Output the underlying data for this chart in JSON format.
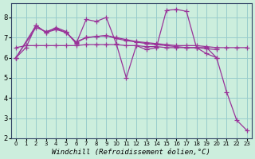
{
  "background_color": "#cceedd",
  "grid_color": "#99cccc",
  "line_color": "#993399",
  "marker": "+",
  "markersize": 4,
  "linewidth": 0.9,
  "xlabel": "Windchill (Refroidissement éolien,°C)",
  "xlabel_fontsize": 6.5,
  "xlim": [
    -0.5,
    23.5
  ],
  "ylim": [
    2,
    8.7
  ],
  "yticks": [
    2,
    3,
    4,
    5,
    6,
    7,
    8
  ],
  "xticks": [
    0,
    1,
    2,
    3,
    4,
    5,
    6,
    7,
    8,
    9,
    10,
    11,
    12,
    13,
    14,
    15,
    16,
    17,
    18,
    19,
    20,
    21,
    22,
    23
  ],
  "series": {
    "s1": {
      "x": [
        0,
        1,
        2,
        3,
        4,
        5,
        6,
        7,
        8,
        9,
        10,
        11,
        12,
        13,
        14,
        15,
        16,
        17,
        18,
        19,
        20,
        21,
        22,
        23
      ],
      "y": [
        6.0,
        6.5,
        7.6,
        7.25,
        7.5,
        7.3,
        6.7,
        7.9,
        7.8,
        8.0,
        6.7,
        5.0,
        6.6,
        6.4,
        6.5,
        8.35,
        8.4,
        8.3,
        6.5,
        6.5,
        6.0,
        4.3,
        2.9,
        2.4
      ]
    },
    "s2": {
      "x": [
        0,
        1,
        2,
        3,
        4,
        5,
        6,
        7,
        8,
        9,
        10,
        11,
        12,
        13,
        14,
        15,
        16,
        17,
        18,
        19,
        20
      ],
      "y": [
        6.5,
        6.6,
        6.6,
        6.6,
        6.6,
        6.6,
        6.6,
        6.65,
        6.65,
        6.65,
        6.65,
        6.6,
        6.6,
        6.55,
        6.55,
        6.5,
        6.5,
        6.5,
        6.5,
        6.2,
        6.0
      ]
    },
    "s3": {
      "x": [
        0,
        2,
        3,
        4,
        5,
        6,
        7,
        8,
        9,
        10,
        11,
        12,
        13,
        14,
        15,
        16,
        17,
        18,
        19,
        20,
        21,
        22,
        23
      ],
      "y": [
        6.0,
        7.6,
        7.25,
        7.4,
        7.25,
        6.75,
        7.0,
        7.05,
        7.1,
        7.0,
        6.9,
        6.8,
        6.75,
        6.7,
        6.65,
        6.6,
        6.6,
        6.6,
        6.55,
        6.5,
        6.5,
        6.5,
        6.5
      ]
    },
    "s4": {
      "x": [
        0,
        2,
        3,
        4,
        5,
        6,
        7,
        8,
        9,
        10,
        11,
        12,
        13,
        14,
        15,
        16,
        17,
        18,
        19,
        20
      ],
      "y": [
        6.0,
        7.5,
        7.3,
        7.45,
        7.25,
        6.78,
        7.0,
        7.05,
        7.1,
        6.95,
        6.85,
        6.78,
        6.7,
        6.65,
        6.6,
        6.55,
        6.5,
        6.5,
        6.45,
        6.4
      ]
    }
  }
}
